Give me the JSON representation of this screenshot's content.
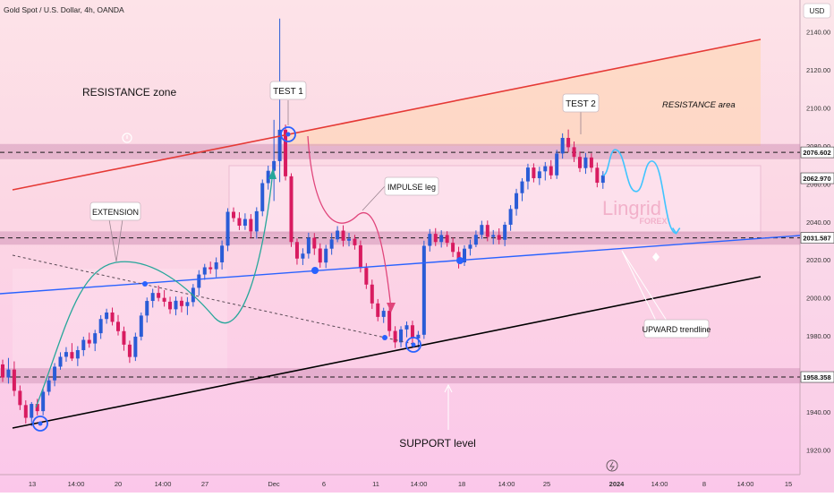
{
  "header": {
    "symbol_title": "Gold Spot / U.S. Dollar, 4h, OANDA",
    "currency_label": "USD"
  },
  "watermark": {
    "brand": "Lingrid",
    "sub": "FOREX"
  },
  "annotations": {
    "resistance_zone": "RESISTANCE zone",
    "resistance_area": "RESISTANCE area",
    "test1": "TEST 1",
    "test2": "TEST 2",
    "extension": "EXTENSION",
    "impulse_leg": "IMPULSE leg",
    "upward_trendline": "UPWARD trendline",
    "support_level": "SUPPORT level"
  },
  "chart_data": {
    "type": "candlestick",
    "ylim": [
      1907,
      2153
    ],
    "y_ticks": [
      1920,
      1940,
      1960,
      1980,
      2000,
      2020,
      2040,
      2060,
      2080,
      2100,
      2120,
      2140
    ],
    "price_labels": [
      {
        "value": 2076.602,
        "label": "2076.602"
      },
      {
        "value": 2062.97,
        "label": "2062.970"
      },
      {
        "value": 2031.587,
        "label": "2031.587"
      },
      {
        "value": 1958.358,
        "label": "1958.358"
      }
    ],
    "x_labels": [
      "13",
      "14:00",
      "20",
      "14:00",
      "27",
      "Dec",
      "6",
      "11",
      "14:00",
      "18",
      "14:00",
      "25",
      "2024",
      "14:00",
      "8",
      "14:00",
      "15"
    ],
    "zones": [
      {
        "from": 2073,
        "to": 2081
      },
      {
        "from": 2028,
        "to": 2035
      },
      {
        "from": 1955,
        "to": 1963
      }
    ],
    "levels": [
      2076.602,
      2031.587,
      1958.358
    ],
    "colors": {
      "resistance_line": "#e53935",
      "upward_trendline": "#2962ff",
      "support_line": "#000000",
      "candle_up": "#2a5cd6",
      "candle_down": "#d81b60",
      "extension_curve": "#26a69a",
      "impulse_curve": "#e0457b",
      "projection": "#40c4ff"
    },
    "candles": [
      [
        1965.0,
        1967.5,
        1955.8,
        1958.1
      ],
      [
        1958.1,
        1968.4,
        1954.9,
        1962.3
      ],
      [
        1962.3,
        1966.6,
        1948.3,
        1951.1
      ],
      [
        1951.1,
        1953.9,
        1941.0,
        1943.6
      ],
      [
        1943.6,
        1946.1,
        1933.9,
        1936.9
      ],
      [
        1936.9,
        1945.2,
        1932.5,
        1944.2
      ],
      [
        1944.2,
        1946.9,
        1938.2,
        1940.4
      ],
      [
        1940.4,
        1952.0,
        1938.2,
        1950.6
      ],
      [
        1950.6,
        1958.4,
        1948.7,
        1956.6
      ],
      [
        1956.6,
        1965.7,
        1953.5,
        1963.8
      ],
      [
        1963.8,
        1971.4,
        1962.2,
        1969.0
      ],
      [
        1969.0,
        1974.1,
        1966.4,
        1971.5
      ],
      [
        1971.5,
        1976.2,
        1966.8,
        1968.1
      ],
      [
        1968.1,
        1974.6,
        1964.1,
        1972.5
      ],
      [
        1972.5,
        1979.6,
        1969.4,
        1977.9
      ],
      [
        1977.9,
        1981.7,
        1973.8,
        1976.0
      ],
      [
        1976.0,
        1983.2,
        1972.0,
        1981.4
      ],
      [
        1981.4,
        1990.9,
        1978.4,
        1988.9
      ],
      [
        1988.9,
        1994.3,
        1986.4,
        1992.3
      ],
      [
        1992.3,
        1994.9,
        1985.5,
        1987.4
      ],
      [
        1987.4,
        1991.0,
        1980.2,
        1982.5
      ],
      [
        1982.5,
        1984.9,
        1972.2,
        1975.4
      ],
      [
        1975.4,
        1977.5,
        1965.8,
        1968.9
      ],
      [
        1968.9,
        1981.7,
        1966.8,
        1979.6
      ],
      [
        1979.6,
        1992.3,
        1977.6,
        1990.7
      ],
      [
        1990.7,
        2000.2,
        1987.0,
        1998.4
      ],
      [
        1998.4,
        2004.8,
        1994.9,
        2002.6
      ],
      [
        2002.6,
        2006.5,
        1998.2,
        2000.0
      ],
      [
        2000.0,
        2004.1,
        1995.4,
        1998.0
      ],
      [
        1998.0,
        2000.6,
        1991.6,
        1994.0
      ],
      [
        1994.0,
        2000.7,
        1990.8,
        1998.5
      ],
      [
        1998.5,
        2000.6,
        1992.4,
        1995.7
      ],
      [
        1995.7,
        2000.4,
        1991.0,
        1997.8
      ],
      [
        1997.8,
        2007.3,
        1995.4,
        2005.3
      ],
      [
        2005.3,
        2014.6,
        2001.2,
        2012.3
      ],
      [
        2012.3,
        2017.9,
        2009.5,
        2016.1
      ],
      [
        2016.1,
        2019.1,
        2012.7,
        2015.1
      ],
      [
        2015.1,
        2021.3,
        2010.9,
        2018.7
      ],
      [
        2018.7,
        2030.2,
        2014.9,
        2027.5
      ],
      [
        2027.5,
        2047.2,
        2024.6,
        2045.3
      ],
      [
        2045.3,
        2047.6,
        2040.0,
        2042.0
      ],
      [
        2042.0,
        2045.1,
        2035.7,
        2038.0
      ],
      [
        2038.0,
        2044.5,
        2035.8,
        2041.5
      ],
      [
        2041.5,
        2044.1,
        2031.3,
        2035.0
      ],
      [
        2035.0,
        2047.7,
        2031.2,
        2045.6
      ],
      [
        2045.6,
        2062.3,
        2043.0,
        2060.4
      ],
      [
        2060.4,
        2069.6,
        2057.0,
        2066.9
      ],
      [
        2066.9,
        2093.7,
        2051.0,
        2072.0
      ],
      [
        2072.0,
        2147.0,
        2060.9,
        2088.5
      ],
      [
        2088.5,
        2091.2,
        2061.8,
        2064.0
      ],
      [
        2064.0,
        2065.6,
        2026.8,
        2029.4
      ],
      [
        2029.4,
        2031.3,
        2017.5,
        2020.7
      ],
      [
        2020.7,
        2026.1,
        2017.3,
        2023.3
      ],
      [
        2023.3,
        2034.3,
        2020.7,
        2031.6
      ],
      [
        2031.6,
        2034.1,
        2022.6,
        2026.0
      ],
      [
        2026.0,
        2028.7,
        2015.9,
        2018.6
      ],
      [
        2018.6,
        2027.9,
        2015.7,
        2025.9
      ],
      [
        2025.9,
        2034.1,
        2022.7,
        2030.8
      ],
      [
        2030.8,
        2037.8,
        2029.3,
        2035.4
      ],
      [
        2035.4,
        2038.2,
        2027.0,
        2030.1
      ],
      [
        2030.1,
        2034.2,
        2027.1,
        2031.1
      ],
      [
        2031.1,
        2033.2,
        2025.4,
        2027.7
      ],
      [
        2027.7,
        2030.2,
        2013.4,
        2015.8
      ],
      [
        2015.8,
        2018.3,
        2004.7,
        2007.0
      ],
      [
        2007.0,
        2009.6,
        1994.2,
        1997.1
      ],
      [
        1997.1,
        1999.4,
        1987.7,
        1990.0
      ],
      [
        1990.0,
        1994.8,
        1986.8,
        1993.2
      ],
      [
        1993.2,
        1995.6,
        1979.7,
        1982.6
      ],
      [
        1982.6,
        1985.1,
        1973.6,
        1976.6
      ],
      [
        1976.6,
        1985.1,
        1974.0,
        1983.4
      ],
      [
        1983.4,
        1987.6,
        1979.3,
        1985.6
      ],
      [
        1985.6,
        1988.0,
        1976.0,
        1978.7
      ],
      [
        1978.7,
        1982.6,
        1973.7,
        1980.6
      ],
      [
        1980.6,
        2030.1,
        1978.4,
        2027.4
      ],
      [
        2027.4,
        2036.2,
        2024.4,
        2033.7
      ],
      [
        2033.7,
        2036.7,
        2027.3,
        2029.4
      ],
      [
        2029.4,
        2035.6,
        2026.5,
        2033.1
      ],
      [
        2033.1,
        2035.1,
        2026.9,
        2029.0
      ],
      [
        2029.0,
        2031.7,
        2021.5,
        2024.2
      ],
      [
        2024.2,
        2026.9,
        2015.5,
        2018.7
      ],
      [
        2018.7,
        2027.7,
        2016.8,
        2025.9
      ],
      [
        2025.9,
        2030.7,
        2022.3,
        2028.0
      ],
      [
        2028.0,
        2035.5,
        2026.7,
        2033.2
      ],
      [
        2033.2,
        2040.6,
        2031.1,
        2038.4
      ],
      [
        2038.4,
        2040.7,
        2029.8,
        2032.1
      ],
      [
        2032.1,
        2035.7,
        2028.2,
        2033.1
      ],
      [
        2033.1,
        2036.6,
        2028.2,
        2030.6
      ],
      [
        2030.6,
        2040.0,
        2027.2,
        2038.5
      ],
      [
        2038.5,
        2048.8,
        2035.3,
        2046.8
      ],
      [
        2046.8,
        2057.4,
        2043.3,
        2055.1
      ],
      [
        2055.1,
        2063.0,
        2050.9,
        2061.3
      ],
      [
        2061.3,
        2070.6,
        2057.1,
        2068.6
      ],
      [
        2068.6,
        2070.8,
        2060.8,
        2063.0
      ],
      [
        2063.0,
        2069.0,
        2059.4,
        2066.6
      ],
      [
        2066.6,
        2071.5,
        2061.8,
        2069.3
      ],
      [
        2069.3,
        2072.5,
        2062.5,
        2064.5
      ],
      [
        2064.5,
        2077.9,
        2062.6,
        2076.0
      ],
      [
        2076.0,
        2086.6,
        2073.3,
        2084.2
      ],
      [
        2084.2,
        2088.6,
        2076.8,
        2079.3
      ],
      [
        2079.3,
        2082.3,
        2071.5,
        2074.2
      ],
      [
        2074.2,
        2077.0,
        2066.2,
        2068.3
      ],
      [
        2068.3,
        2076.3,
        2065.3,
        2073.9
      ],
      [
        2073.9,
        2076.1,
        2066.1,
        2068.5
      ],
      [
        2068.5,
        2071.2,
        2058.2,
        2060.6
      ],
      [
        2060.6,
        2066.7,
        2057.4,
        2064.5
      ]
    ],
    "projection_path": [
      [
        2064.5,
        0
      ],
      [
        2078,
        7
      ],
      [
        2056,
        19
      ],
      [
        2072,
        28
      ],
      [
        2034,
        42
      ]
    ]
  }
}
